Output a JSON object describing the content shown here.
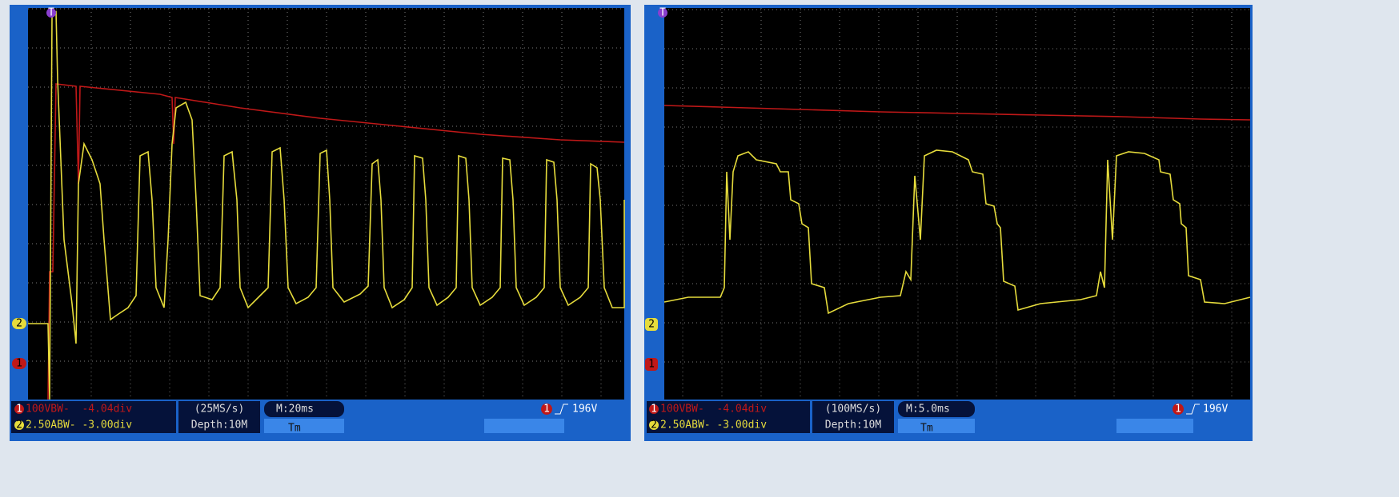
{
  "panels": [
    {
      "top_marker": "T",
      "markers": [
        "2",
        "1"
      ],
      "ch1_marker": "1",
      "ch1": "100VBW-  -4.04div",
      "ch2_marker": "2",
      "ch2": "2.50ABW- -3.00div",
      "sample_rate": "(25MS/s)",
      "depth": "Depth:10M",
      "timebase": "M:20ms",
      "trigger_marker": "1",
      "trigger": "196V",
      "menu": "Tm"
    },
    {
      "top_marker": "T",
      "markers": [
        "2",
        "1"
      ],
      "ch1_marker": "1",
      "ch1": "100VBW-  -4.04div",
      "ch2_marker": "2",
      "ch2": "2.50ABW- -3.00div",
      "sample_rate": "(100MS/s)",
      "depth": "Depth:10M",
      "timebase": "M:5.0ms",
      "trigger_marker": "1",
      "trigger": "196V",
      "menu": "Tm"
    }
  ]
}
